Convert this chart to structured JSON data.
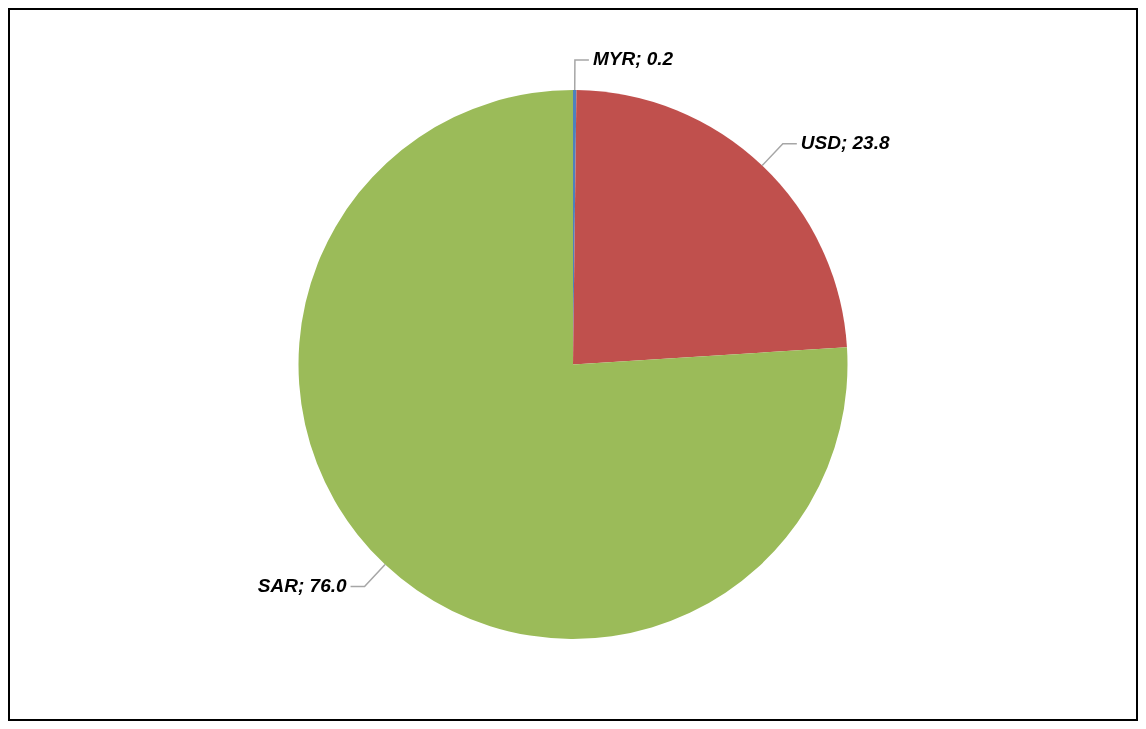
{
  "chart_data": {
    "type": "pie",
    "categories": [
      "MYR",
      "USD",
      "SAR"
    ],
    "values": [
      0.2,
      23.8,
      76.0
    ],
    "value_labels": [
      "0.2",
      "23.8",
      "76.0"
    ],
    "colors": [
      "#4f81bd",
      "#c0504d",
      "#9bbb59"
    ],
    "legend": false
  }
}
